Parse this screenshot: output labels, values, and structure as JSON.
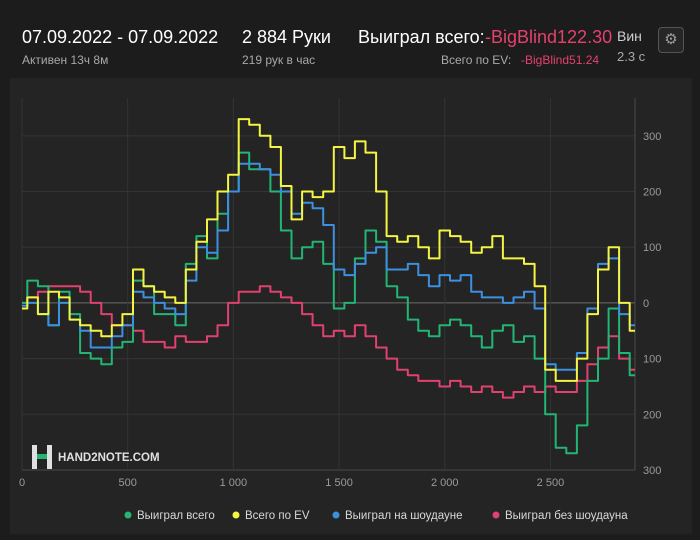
{
  "header": {
    "date_range": "07.09.2022 - 07.09.2022",
    "active": "Активен 13ч 8м",
    "hands": "2 884 Руки",
    "hands_per_hour": "219 рук в час",
    "won_label": "Выиграл всего:",
    "won_value": "-BigBlind122.30",
    "ev_label": "Всего по EV:",
    "ev_value": "-BigBlind51.24",
    "cut_label": "Вин",
    "cut_sub": "2.3 с",
    "settings_icon": "gear-icon"
  },
  "logo": {
    "text": "HAND2NOTE.COM"
  },
  "colors": {
    "green": "#22b573",
    "yellow": "#f4f442",
    "blue": "#3d8fe0",
    "pink": "#e0416f",
    "negative": "#e5416d"
  },
  "chart_data": {
    "type": "line",
    "xlim": [
      0,
      2900
    ],
    "ylim": [
      -300,
      350
    ],
    "grid": true,
    "legend_position": "bottom",
    "x_ticks": [
      0,
      500,
      1000,
      1500,
      2000,
      2500
    ],
    "x_tick_labels": [
      "0",
      "500",
      "1 000",
      "1 500",
      "2 000",
      "2 500"
    ],
    "y_ticks": [
      300,
      200,
      100,
      0,
      -100,
      -200,
      -300
    ],
    "y_tick_labels": [
      "300",
      "200",
      "100",
      "0",
      "100",
      "200",
      "300"
    ],
    "x": [
      0,
      50,
      100,
      150,
      200,
      250,
      300,
      350,
      400,
      450,
      500,
      550,
      600,
      650,
      700,
      750,
      800,
      850,
      900,
      950,
      1000,
      1050,
      1100,
      1150,
      1200,
      1250,
      1300,
      1350,
      1400,
      1450,
      1500,
      1550,
      1600,
      1650,
      1700,
      1750,
      1800,
      1850,
      1900,
      1950,
      2000,
      2050,
      2100,
      2150,
      2200,
      2250,
      2300,
      2350,
      2400,
      2450,
      2500,
      2550,
      2600,
      2650,
      2700,
      2750,
      2800,
      2850,
      2900
    ],
    "series": [
      {
        "name": "Выиграл всего",
        "color": "green",
        "values": [
          0,
          40,
          30,
          -40,
          20,
          -20,
          -90,
          -100,
          -110,
          -80,
          -70,
          40,
          30,
          -20,
          -20,
          -40,
          70,
          120,
          80,
          160,
          200,
          270,
          240,
          240,
          200,
          130,
          80,
          100,
          110,
          70,
          -10,
          0,
          80,
          130,
          110,
          30,
          10,
          -30,
          -50,
          -60,
          -40,
          -30,
          -40,
          -60,
          -80,
          -50,
          -40,
          -70,
          -60,
          -100,
          -200,
          -260,
          -270,
          -220,
          -140,
          -100,
          -10,
          -90,
          -130
        ]
      },
      {
        "name": "Всего по EV",
        "color": "yellow",
        "values": [
          -10,
          10,
          -20,
          20,
          10,
          -30,
          -40,
          -50,
          -60,
          -40,
          -20,
          60,
          30,
          20,
          10,
          0,
          60,
          110,
          150,
          200,
          230,
          330,
          320,
          300,
          280,
          210,
          150,
          200,
          190,
          200,
          280,
          260,
          290,
          270,
          200,
          120,
          110,
          120,
          100,
          80,
          130,
          120,
          110,
          90,
          100,
          120,
          80,
          80,
          70,
          30,
          -120,
          -140,
          -140,
          -100,
          -20,
          60,
          100,
          0,
          -50
        ]
      },
      {
        "name": "Выиграл на шоудауне",
        "color": "blue",
        "values": [
          -5,
          0,
          -20,
          -40,
          0,
          -30,
          -50,
          -80,
          -80,
          -60,
          -40,
          20,
          10,
          0,
          -10,
          -20,
          40,
          100,
          90,
          130,
          200,
          250,
          250,
          240,
          230,
          200,
          160,
          180,
          170,
          140,
          60,
          50,
          70,
          90,
          100,
          60,
          60,
          70,
          50,
          30,
          50,
          40,
          50,
          20,
          10,
          10,
          0,
          10,
          20,
          -10,
          -110,
          -120,
          -120,
          -90,
          -10,
          70,
          80,
          -20,
          -40
        ]
      },
      {
        "name": "Выиграл без шоудауна",
        "color": "pink",
        "values": [
          0,
          10,
          20,
          30,
          30,
          30,
          20,
          0,
          -20,
          -40,
          -40,
          -50,
          -70,
          -70,
          -80,
          -60,
          -70,
          -70,
          -60,
          -40,
          0,
          20,
          20,
          30,
          20,
          10,
          0,
          -20,
          -40,
          -60,
          -50,
          -60,
          -40,
          -60,
          -80,
          -100,
          -120,
          -130,
          -140,
          -140,
          -150,
          -140,
          -150,
          -160,
          -150,
          -160,
          -170,
          -160,
          -150,
          -160,
          -150,
          -160,
          -160,
          -140,
          -110,
          -80,
          -60,
          -100,
          -120
        ]
      }
    ]
  }
}
